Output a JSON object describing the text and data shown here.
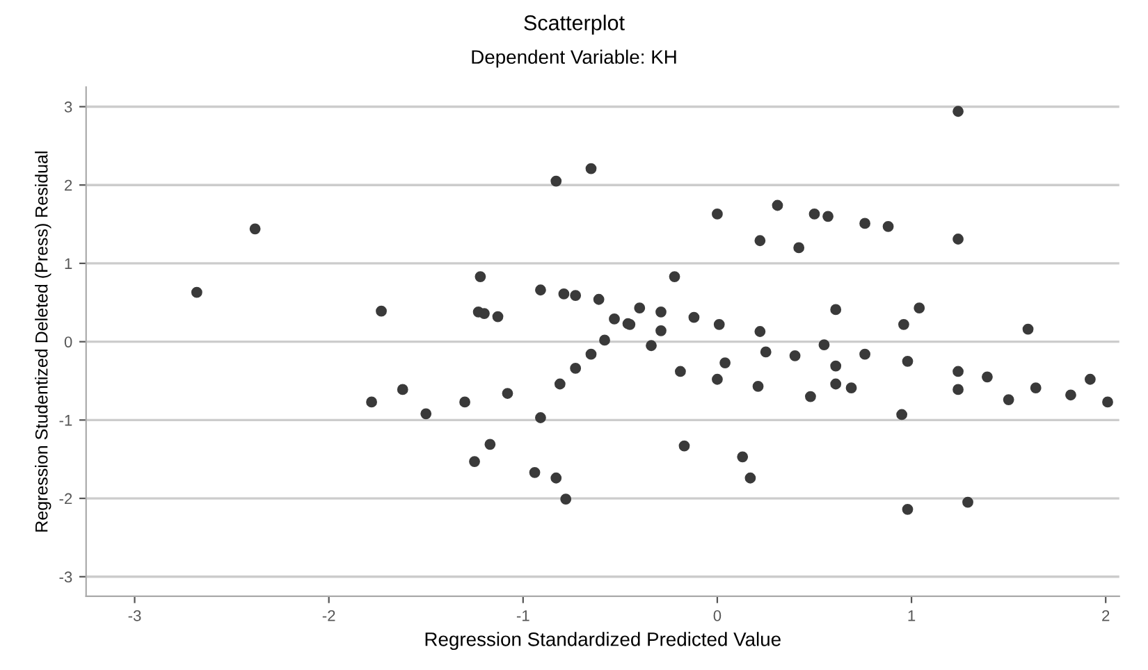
{
  "chart_data": {
    "type": "scatter",
    "title": "Scatterplot",
    "subtitle": "Dependent Variable: KH",
    "xlabel": "Regression Standardized Predicted Value",
    "ylabel": "Regression Studentized Deleted (Press) Residual",
    "xlim": [
      -3.25,
      2.07
    ],
    "ylim": [
      -3.25,
      3.25
    ],
    "xticks": [
      -3,
      -2,
      -1,
      0,
      1,
      2
    ],
    "yticks": [
      -3,
      -2,
      -1,
      0,
      1,
      2,
      3
    ],
    "grid": "y",
    "marker": "circle",
    "series": [
      {
        "color": "#3a3a3a",
        "x": [
          -2.68,
          -2.38,
          -1.73,
          -1.78,
          -1.62,
          -1.5,
          -1.3,
          -1.22,
          -1.23,
          -1.2,
          -1.13,
          -1.08,
          -1.17,
          -1.25,
          -0.91,
          -0.91,
          -0.94,
          -0.83,
          -0.78,
          -0.83,
          -0.65,
          -0.81,
          -0.73,
          -0.79,
          -0.73,
          -0.65,
          -0.61,
          -0.58,
          -0.53,
          -0.45,
          -0.4,
          -0.46,
          -0.29,
          -0.29,
          -0.34,
          -0.22,
          -0.19,
          -0.17,
          -0.12,
          0.01,
          0.0,
          0.04,
          0.0,
          0.13,
          0.17,
          0.22,
          0.22,
          0.25,
          0.21,
          0.31,
          0.4,
          0.42,
          0.5,
          0.55,
          0.57,
          0.61,
          0.61,
          0.61,
          0.69,
          0.48,
          0.76,
          0.76,
          0.88,
          0.96,
          1.04,
          0.98,
          0.95,
          0.98,
          1.24,
          1.24,
          1.24,
          1.24,
          1.29,
          1.39,
          1.5,
          1.6,
          1.64,
          1.82,
          1.92,
          2.01
        ],
        "values": [
          0.63,
          1.44,
          0.39,
          -0.77,
          -0.61,
          -0.92,
          -0.77,
          0.83,
          0.38,
          0.36,
          0.32,
          -0.66,
          -1.31,
          -1.53,
          0.66,
          -0.97,
          -1.67,
          -1.74,
          -2.01,
          2.05,
          2.21,
          -0.54,
          -0.34,
          0.61,
          0.59,
          -0.16,
          0.54,
          0.02,
          0.29,
          0.22,
          0.43,
          0.23,
          0.38,
          0.14,
          -0.05,
          0.83,
          -0.38,
          -1.33,
          0.31,
          0.22,
          1.63,
          -0.27,
          -0.48,
          -1.47,
          -1.74,
          0.13,
          1.29,
          -0.13,
          -0.57,
          1.74,
          -0.18,
          1.2,
          1.63,
          -0.04,
          1.6,
          0.41,
          -0.31,
          -0.54,
          -0.59,
          -0.7,
          -0.16,
          1.51,
          1.47,
          0.22,
          0.43,
          -0.25,
          -0.93,
          -2.14,
          2.94,
          1.31,
          -0.38,
          -0.61,
          -2.05,
          -0.45,
          -0.74,
          0.16,
          -0.59,
          -0.68,
          -0.48,
          -0.77
        ]
      }
    ]
  }
}
